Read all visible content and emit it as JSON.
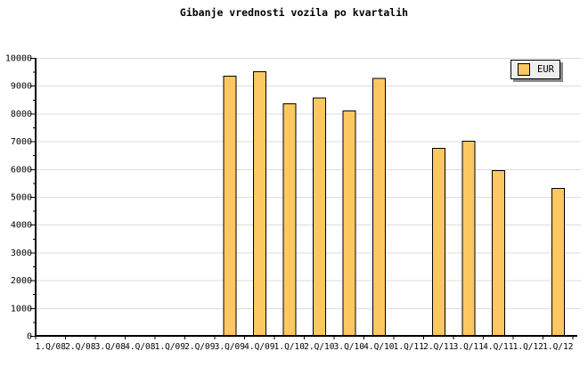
{
  "chart_data": {
    "type": "bar",
    "title": "Gibanje vrednosti vozila po kvartalih",
    "categories": [
      "1.Q/08",
      "2.Q/08",
      "3.Q/08",
      "4.Q/08",
      "1.Q/09",
      "2.Q/09",
      "3.Q/09",
      "4.Q/09",
      "1.Q/10",
      "2.Q/10",
      "3.Q/10",
      "4.Q/10",
      "1.Q/11",
      "2.Q/11",
      "3.Q/11",
      "4.Q/11",
      "1.Q/12",
      "1.Q/12"
    ],
    "series": [
      {
        "name": "EUR",
        "values": [
          null,
          null,
          null,
          null,
          null,
          null,
          9350,
          9500,
          8350,
          8550,
          8100,
          9270,
          null,
          6750,
          7000,
          5950,
          null,
          5300
        ]
      }
    ],
    "ylim": [
      0,
      10000
    ],
    "ytick_step": 1000,
    "ytick_minor_step": 500,
    "ytick_labels": [
      "0",
      "1000",
      "2000",
      "3000",
      "4000",
      "5000",
      "6000",
      "7000",
      "8000",
      "9000",
      "10000"
    ],
    "grid": "horizontal-on",
    "legend": {
      "position": "top-right",
      "entries": [
        {
          "label": "EUR",
          "color": "#FDC862"
        }
      ]
    },
    "colors": {
      "bar_fill": "#FDC862",
      "bar_border": "#000000",
      "grid": "#DDDDDD",
      "axis": "#000000",
      "text": "#000000",
      "legend_bg": "#EEEEEE",
      "legend_shadow": "#8A8A8A",
      "background": "#FFFFFF"
    }
  }
}
